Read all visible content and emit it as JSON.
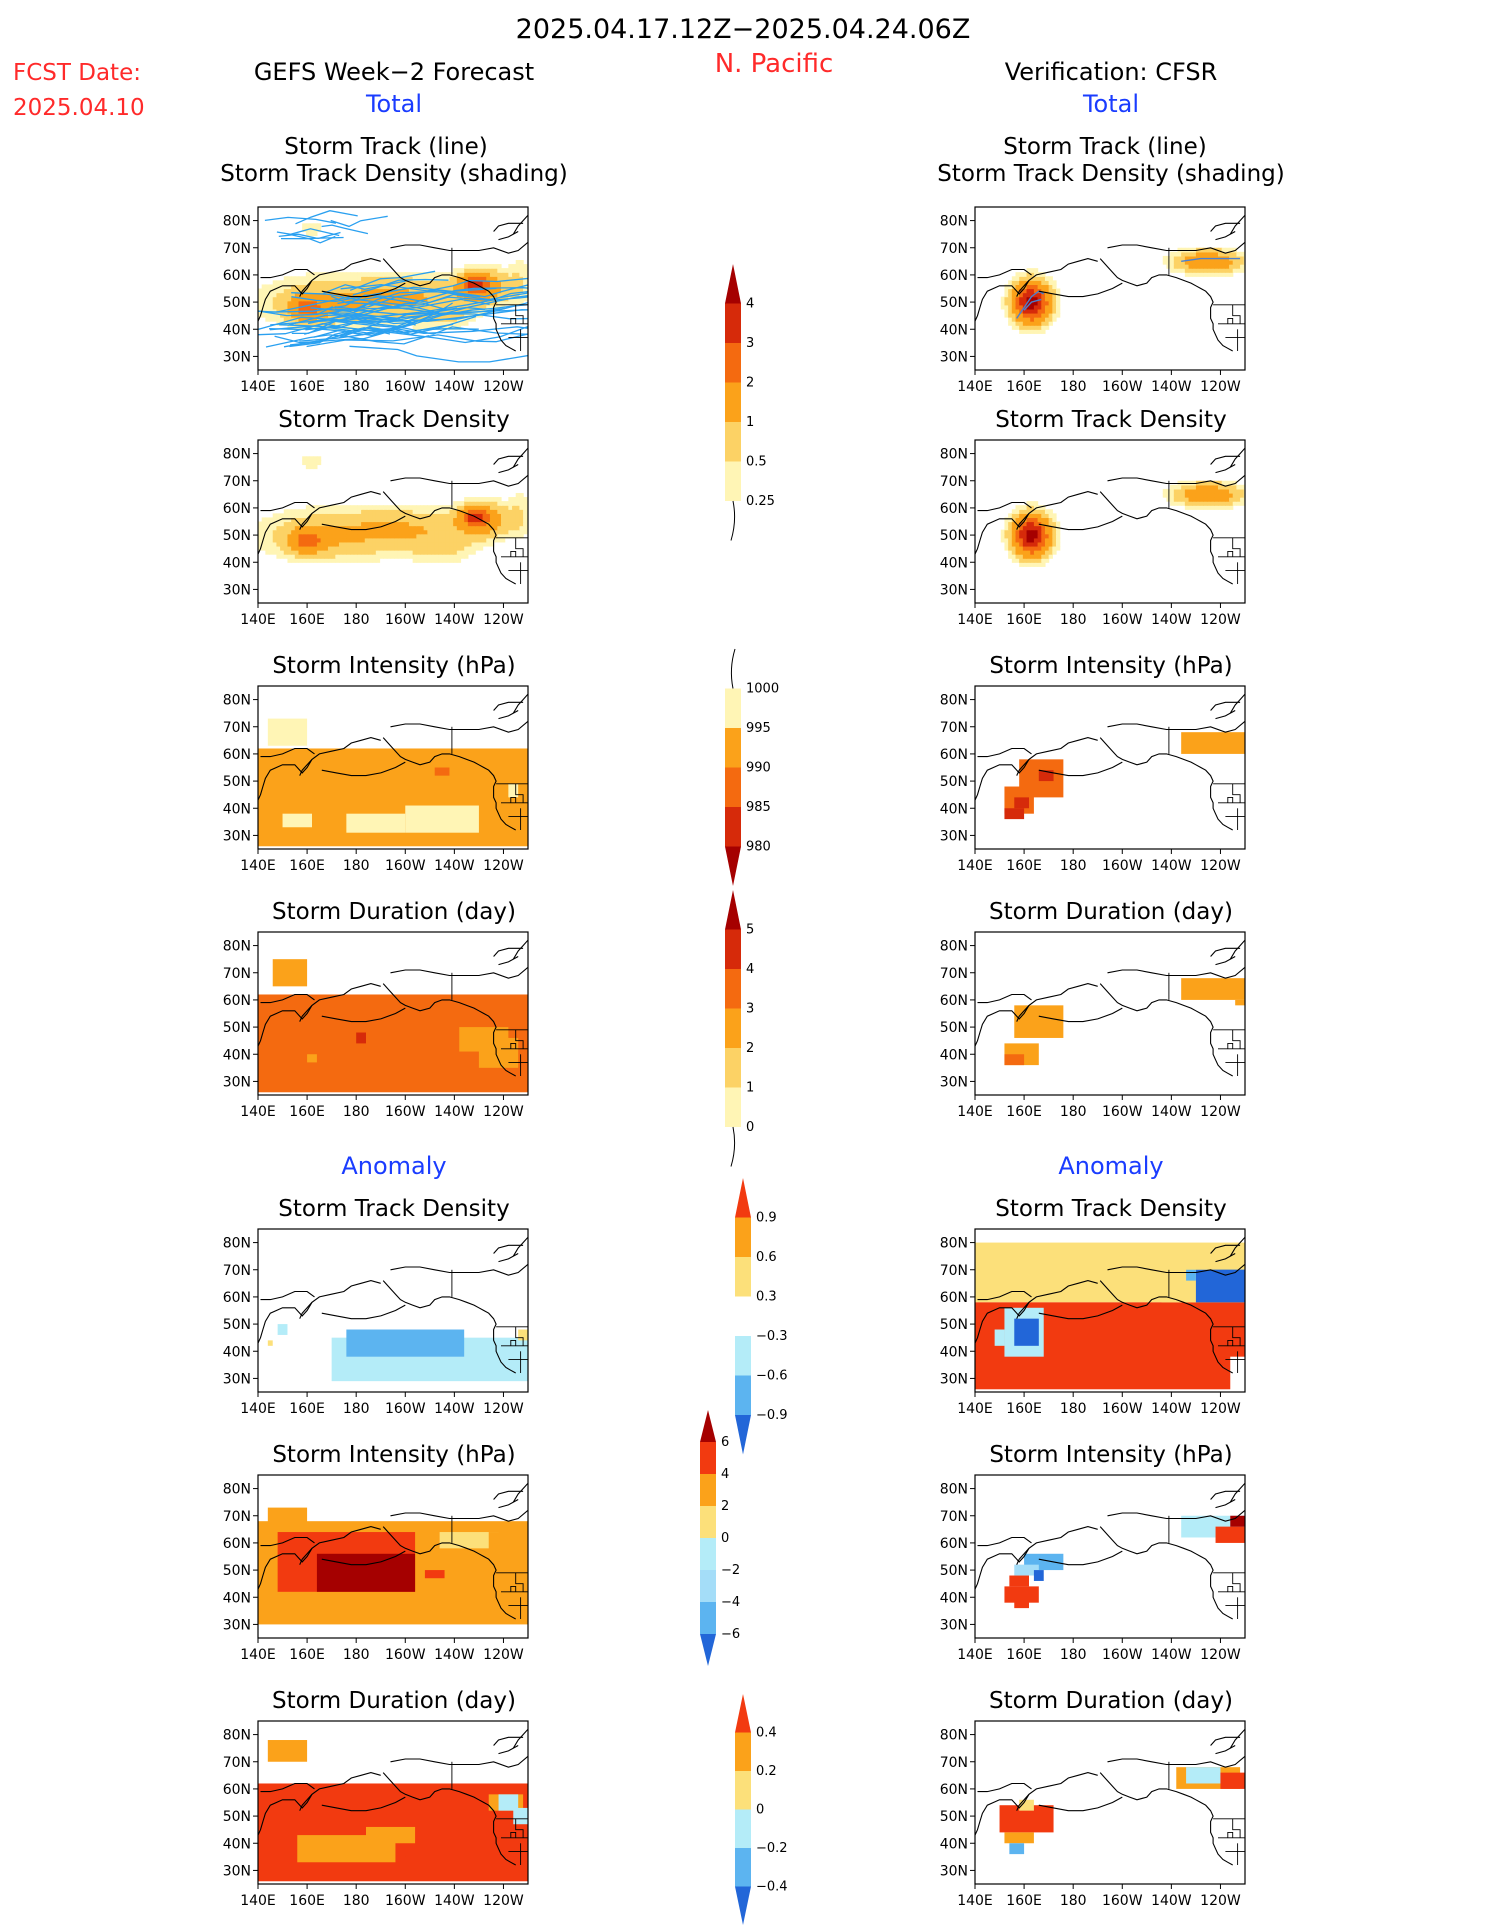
{
  "header": {
    "date_range": "2025.04.17.12Z−2025.04.24.06Z",
    "region": "N. Pacific",
    "fcst_label": "FCST Date:",
    "fcst_date": "2025.04.10",
    "left_title": "GEFS Week−2 Forecast",
    "right_title": "Verification: CFSR",
    "total_label": "Total",
    "anomaly_label": "Anomaly"
  },
  "panel_titles": {
    "track_line_1": "Storm Track (line)",
    "track_line_2": "Storm Track Density (shading)",
    "density": "Storm Track Density",
    "intensity": "Storm Intensity (hPa)",
    "duration": "Storm Duration (day)"
  },
  "axes": {
    "x_ticks": [
      "140E",
      "160E",
      "180",
      "160W",
      "140W",
      "120W"
    ],
    "y_ticks": [
      "30N",
      "40N",
      "50N",
      "60N",
      "70N",
      "80N"
    ],
    "lon_range": [
      140,
      250
    ],
    "lat_range": [
      25,
      85
    ]
  },
  "colorbars": {
    "total_density": {
      "labels": [
        "4",
        "3",
        "2",
        "1",
        "0.5",
        "0.25"
      ],
      "colors": [
        "#a50000",
        "#d62a0a",
        "#f46a10",
        "#fba21a",
        "#fcd265",
        "#fff5b5"
      ]
    },
    "total_intensity": {
      "labels": [
        "1000",
        "995",
        "990",
        "985",
        "980"
      ],
      "colors": [
        "#fff5b5",
        "#fba21a",
        "#f46a10",
        "#d62a0a",
        "#a50000"
      ]
    },
    "total_duration": {
      "labels": [
        "5",
        "4",
        "3",
        "2",
        "1",
        "0"
      ],
      "colors": [
        "#a50000",
        "#d62a0a",
        "#f46a10",
        "#fba21a",
        "#fcd265",
        "#fff5b5"
      ]
    },
    "anom_density": {
      "labels": [
        "0.9",
        "0.6",
        "0.3",
        "−0.3",
        "−0.6",
        "−0.9"
      ],
      "colors": [
        "#f23a10",
        "#fba21a",
        "#fce07a",
        "#ffffff",
        "#b4ecf8",
        "#5cb4f0",
        "#2266d8"
      ]
    },
    "anom_intensity": {
      "labels": [
        "6",
        "4",
        "2",
        "0",
        "−2",
        "−4",
        "−6"
      ],
      "colors": [
        "#a50000",
        "#f23a10",
        "#fba21a",
        "#fce07a",
        "#b4ecf8",
        "#a4ddf8",
        "#5cb4f0",
        "#2266d8"
      ]
    },
    "anom_duration": {
      "labels": [
        "0.4",
        "0.2",
        "0",
        "−0.2",
        "−0.4"
      ],
      "colors": [
        "#f23a10",
        "#fba21a",
        "#fce07a",
        "#b4ecf8",
        "#5cb4f0",
        "#2266d8"
      ]
    }
  },
  "chart_data": [
    {
      "id": "f_track",
      "type": "heatmap",
      "title": "Storm Track (line)",
      "subtitle": "Storm Track Density (shading)",
      "source": "GEFS Week-2 Forecast",
      "kind": "density_blobs",
      "blobs": [
        [
          170,
          50,
          28,
          9,
          1
        ],
        [
          205,
          53,
          25,
          7,
          0.8
        ],
        [
          232,
          56,
          10,
          6,
          1.5
        ],
        [
          160,
          48,
          7,
          4,
          1.8
        ],
        [
          228,
          57,
          5,
          3,
          2.2
        ],
        [
          215,
          45,
          14,
          6,
          0.45
        ],
        [
          162,
          77,
          7,
          4,
          0.35
        ],
        [
          247,
          58,
          5,
          10,
          0.4
        ]
      ],
      "tracks": true
    },
    {
      "id": "f_density",
      "type": "heatmap",
      "title": "Storm Track Density",
      "source": "GEFS Week-2 Forecast",
      "kind": "density_blobs",
      "blobs": [
        [
          170,
          50,
          28,
          9,
          1
        ],
        [
          205,
          53,
          25,
          7,
          0.8
        ],
        [
          232,
          56,
          10,
          6,
          1.5
        ],
        [
          160,
          48,
          7,
          4,
          1.8
        ],
        [
          228,
          57,
          5,
          3,
          2.2
        ],
        [
          215,
          45,
          14,
          6,
          0.45
        ],
        [
          162,
          77,
          7,
          4,
          0.35
        ],
        [
          247,
          58,
          5,
          10,
          0.4
        ]
      ]
    },
    {
      "id": "f_intensity",
      "type": "heatmap",
      "title": "Storm Intensity (hPa)",
      "source": "GEFS Week-2 Forecast",
      "kind": "grid",
      "cells": [
        [
          140,
          62,
          200,
          36,
          1
        ],
        [
          222,
          50,
          22,
          15,
          1
        ],
        [
          244,
          57,
          6,
          8,
          1
        ],
        [
          150,
          38,
          12,
          5,
          0
        ],
        [
          176,
          38,
          24,
          7,
          0
        ],
        [
          200,
          41,
          30,
          10,
          0
        ],
        [
          144,
          73,
          16,
          10,
          0
        ],
        [
          212,
          55,
          6,
          3,
          2
        ],
        [
          242,
          49,
          4,
          5,
          0
        ]
      ]
    },
    {
      "id": "f_duration",
      "type": "heatmap",
      "title": "Storm Duration (day)",
      "source": "GEFS Week-2 Forecast",
      "kind": "grid",
      "cells": [
        [
          140,
          62,
          200,
          36,
          3
        ],
        [
          222,
          50,
          24,
          15,
          2
        ],
        [
          242,
          56,
          8,
          10,
          3
        ],
        [
          150,
          36,
          12,
          3,
          3
        ],
        [
          176,
          36,
          24,
          5,
          3
        ],
        [
          200,
          41,
          30,
          8,
          3
        ],
        [
          146,
          75,
          14,
          10,
          2
        ],
        [
          180,
          48,
          4,
          4,
          4
        ],
        [
          160,
          40,
          4,
          3,
          2
        ]
      ]
    },
    {
      "id": "f_anom_density",
      "type": "heatmap",
      "title": "Storm Track Density",
      "source": "GEFS Week-2 Forecast (anomaly)",
      "kind": "grid",
      "cells": [
        [
          164,
          80,
          74,
          12,
          3
        ],
        [
          140,
          58,
          200,
          6,
          3
        ],
        [
          154,
          42,
          110,
          20,
          3
        ],
        [
          170,
          45,
          86,
          16,
          2
        ],
        [
          176,
          48,
          48,
          10,
          1
        ],
        [
          148,
          50,
          4,
          4,
          2
        ],
        [
          144,
          44,
          2,
          2,
          4
        ],
        [
          246,
          48,
          4,
          4,
          4
        ]
      ]
    },
    {
      "id": "f_anom_intensity",
      "type": "heatmap",
      "title": "Storm Intensity (hPa)",
      "source": "GEFS Week-2 Forecast (anomaly)",
      "kind": "grid",
      "cells": [
        [
          140,
          68,
          200,
          38,
          5
        ],
        [
          150,
          39,
          36,
          6,
          5
        ],
        [
          180,
          44,
          40,
          4,
          5
        ],
        [
          144,
          73,
          16,
          10,
          5
        ],
        [
          148,
          64,
          56,
          22,
          6
        ],
        [
          164,
          56,
          40,
          14,
          7
        ],
        [
          214,
          64,
          24,
          6,
          4
        ],
        [
          234,
          64,
          18,
          14,
          5
        ],
        [
          208,
          50,
          8,
          3,
          6
        ]
      ]
    },
    {
      "id": "f_anom_duration",
      "type": "heatmap",
      "title": "Storm Duration (day)",
      "source": "GEFS Week-2 Forecast (anomaly)",
      "kind": "grid",
      "cells": [
        [
          140,
          62,
          200,
          36,
          5
        ],
        [
          200,
          47,
          26,
          12,
          5
        ],
        [
          144,
          78,
          16,
          8,
          4
        ],
        [
          234,
          58,
          14,
          6,
          4
        ],
        [
          238,
          58,
          8,
          6,
          2
        ],
        [
          244,
          53,
          6,
          6,
          2
        ],
        [
          156,
          43,
          40,
          10,
          4
        ],
        [
          184,
          46,
          20,
          6,
          4
        ]
      ]
    },
    {
      "id": "v_track",
      "type": "heatmap",
      "title": "Storm Track (line)",
      "subtitle": "Storm Track Density (shading)",
      "source": "Verification: CFSR",
      "kind": "density_blobs",
      "blobs": [
        [
          163,
          50,
          7,
          7,
          4.5
        ],
        [
          235,
          65,
          13,
          4,
          1.8
        ]
      ],
      "tracks_verif": true
    },
    {
      "id": "v_density",
      "type": "heatmap",
      "title": "Storm Track Density",
      "source": "Verification: CFSR",
      "kind": "density_blobs",
      "blobs": [
        [
          163,
          50,
          7,
          7,
          4.5
        ],
        [
          235,
          65,
          13,
          4,
          1.8
        ]
      ]
    },
    {
      "id": "v_intensity",
      "type": "heatmap",
      "title": "Storm Intensity (hPa)",
      "source": "Verification: CFSR",
      "kind": "grid",
      "cells": [
        [
          224,
          68,
          26,
          8,
          1
        ],
        [
          158,
          58,
          18,
          14,
          2
        ],
        [
          152,
          48,
          12,
          10,
          2
        ],
        [
          156,
          44,
          6,
          4,
          3
        ],
        [
          166,
          54,
          6,
          4,
          3
        ],
        [
          152,
          40,
          8,
          4,
          3
        ]
      ]
    },
    {
      "id": "v_duration",
      "type": "heatmap",
      "title": "Storm Duration (day)",
      "source": "Verification: CFSR",
      "kind": "grid",
      "cells": [
        [
          224,
          68,
          26,
          8,
          2
        ],
        [
          246,
          60,
          4,
          2,
          2
        ],
        [
          156,
          58,
          20,
          12,
          2
        ],
        [
          152,
          44,
          14,
          8,
          2
        ],
        [
          152,
          40,
          8,
          4,
          3
        ]
      ]
    },
    {
      "id": "v_anom_density",
      "type": "heatmap",
      "title": "Storm Track Density",
      "source": "Verification: CFSR (anomaly)",
      "kind": "grid",
      "cells": [
        [
          140,
          80,
          110,
          22,
          4
        ],
        [
          140,
          58,
          110,
          20,
          6
        ],
        [
          140,
          42,
          104,
          16,
          6
        ],
        [
          216,
          62,
          34,
          4,
          4
        ],
        [
          230,
          70,
          20,
          12,
          0
        ],
        [
          236,
          70,
          14,
          8,
          0
        ],
        [
          226,
          70,
          4,
          4,
          1
        ],
        [
          152,
          56,
          16,
          18,
          2
        ],
        [
          156,
          52,
          10,
          10,
          0
        ],
        [
          148,
          48,
          4,
          6,
          2
        ]
      ]
    },
    {
      "id": "v_anom_intensity",
      "type": "heatmap",
      "title": "Storm Intensity (hPa)",
      "source": "Verification: CFSR (anomaly)",
      "kind": "grid",
      "cells": [
        [
          224,
          70,
          26,
          8,
          3
        ],
        [
          238,
          66,
          12,
          6,
          6
        ],
        [
          244,
          70,
          6,
          4,
          7
        ],
        [
          152,
          44,
          14,
          6,
          6
        ],
        [
          156,
          40,
          6,
          4,
          6
        ],
        [
          154,
          48,
          8,
          4,
          6
        ],
        [
          160,
          56,
          16,
          6,
          1
        ],
        [
          156,
          52,
          10,
          4,
          2
        ],
        [
          164,
          50,
          4,
          4,
          0
        ]
      ]
    },
    {
      "id": "v_anom_duration",
      "type": "heatmap",
      "title": "Storm Duration (day)",
      "source": "Verification: CFSR (anomaly)",
      "kind": "grid",
      "cells": [
        [
          222,
          68,
          26,
          8,
          4
        ],
        [
          226,
          68,
          14,
          6,
          2
        ],
        [
          240,
          66,
          10,
          6,
          5
        ],
        [
          150,
          54,
          22,
          10,
          5
        ],
        [
          152,
          44,
          12,
          4,
          4
        ],
        [
          154,
          40,
          6,
          4,
          1
        ],
        [
          158,
          56,
          6,
          4,
          3
        ]
      ]
    }
  ]
}
